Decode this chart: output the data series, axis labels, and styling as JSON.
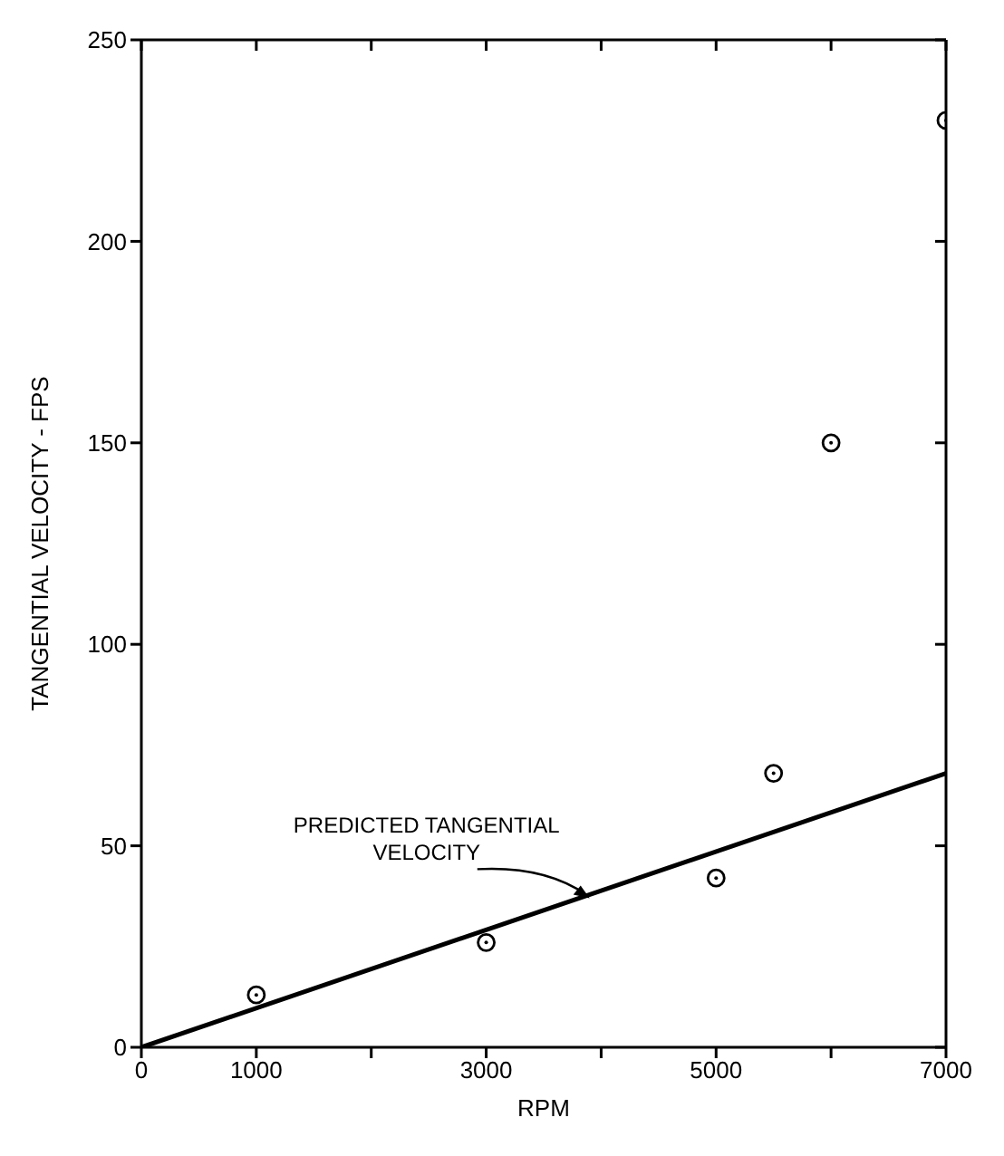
{
  "chart_data": {
    "type": "scatter",
    "xlabel": "RPM",
    "ylabel": "TANGENTIAL VELOCITY - FPS",
    "xlim": [
      0,
      7000
    ],
    "ylim": [
      0,
      250
    ],
    "xticks": [
      0,
      1000,
      {
        "value": 2000,
        "label": null
      },
      3000,
      {
        "value": 4000,
        "label": null
      },
      5000,
      {
        "value": 6000,
        "label": null
      },
      7000
    ],
    "yticks": [
      0,
      50,
      100,
      150,
      200,
      250
    ],
    "grid": false,
    "legend": false,
    "marker": "circle",
    "series": [
      {
        "color": "#000000",
        "x": [
          1000,
          3000,
          5000,
          5500,
          6000,
          7000
        ],
        "values": [
          13,
          26,
          42,
          68,
          150,
          230
        ]
      },
      {
        "type": "line",
        "color": "#000000",
        "line_style": "solid",
        "marker": "none",
        "x": [
          0,
          7000
        ],
        "values": [
          0,
          68
        ]
      }
    ],
    "annotations": [
      {
        "text": "PREDICTED TANGENTIAL VELOCITY",
        "x": 3900,
        "y": 37
      }
    ]
  }
}
